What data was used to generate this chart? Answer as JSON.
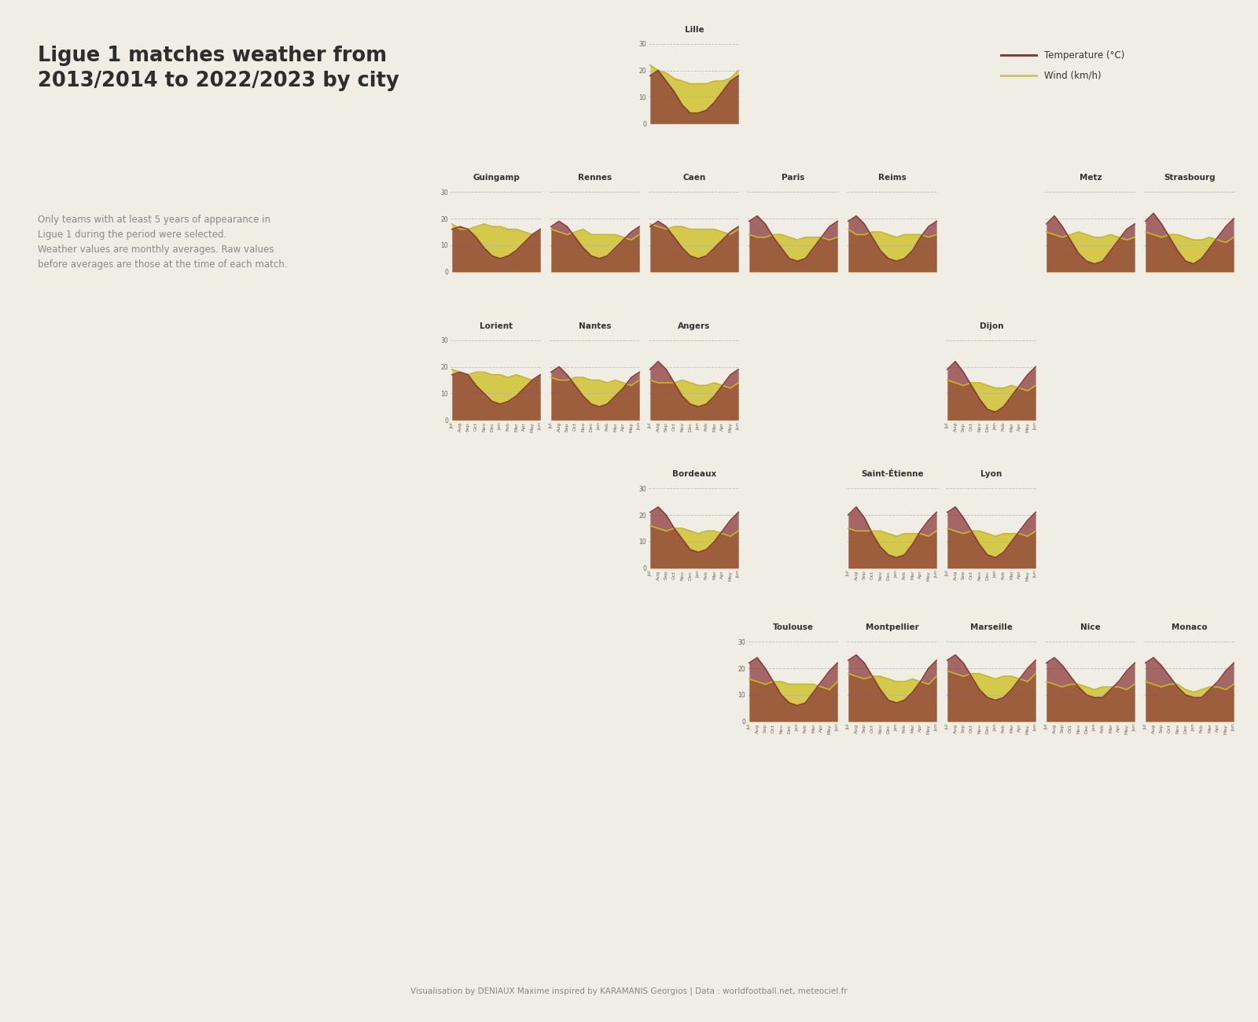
{
  "title": "Ligue 1 matches weather from\n2013/2014 to 2022/2023 by city",
  "subtitle": "Only teams with at least 5 years of appearance in\nLigue 1 during the period were selected.\nWeather values are monthly averages. Raw values\nbefore averages are those at the time of each match.",
  "footer": "Visualisation by DENIAUX Maxime inspired by KARAMANIS Georgios | Data : worldfootball.net, meteociel.fr",
  "bg_color": "#f0ede4",
  "temp_color": "#8B3A3A",
  "wind_color": "#d4c94a",
  "months": [
    "Jul",
    "Aug",
    "Sep",
    "Oct",
    "Nov",
    "Dec",
    "Jan",
    "Feb",
    "Mar",
    "Apr",
    "May",
    "Jun"
  ],
  "cities": {
    "Lille": {
      "temp": [
        18,
        20,
        16,
        12,
        7,
        4,
        4,
        5,
        8,
        12,
        16,
        18
      ],
      "wind": [
        22,
        20,
        19,
        17,
        16,
        15,
        15,
        15,
        16,
        16,
        17,
        20
      ]
    },
    "Guingamp": {
      "temp": [
        16,
        17,
        16,
        13,
        9,
        6,
        5,
        6,
        8,
        11,
        14,
        16
      ],
      "wind": [
        18,
        16,
        16,
        17,
        18,
        17,
        17,
        16,
        16,
        15,
        14,
        16
      ]
    },
    "Rennes": {
      "temp": [
        17,
        19,
        17,
        13,
        9,
        6,
        5,
        6,
        9,
        12,
        15,
        17
      ],
      "wind": [
        16,
        15,
        14,
        15,
        16,
        14,
        14,
        14,
        14,
        13,
        12,
        14
      ]
    },
    "Caen": {
      "temp": [
        17,
        19,
        17,
        13,
        9,
        6,
        5,
        6,
        9,
        12,
        15,
        17
      ],
      "wind": [
        18,
        17,
        16,
        17,
        17,
        16,
        16,
        16,
        16,
        15,
        14,
        16
      ]
    },
    "Paris": {
      "temp": [
        19,
        21,
        18,
        13,
        9,
        5,
        4,
        5,
        9,
        13,
        17,
        19
      ],
      "wind": [
        14,
        13,
        13,
        14,
        14,
        13,
        12,
        13,
        13,
        13,
        12,
        13
      ]
    },
    "Reims": {
      "temp": [
        19,
        21,
        18,
        13,
        8,
        5,
        4,
        5,
        8,
        13,
        17,
        19
      ],
      "wind": [
        16,
        14,
        14,
        15,
        15,
        14,
        13,
        14,
        14,
        14,
        13,
        14
      ]
    },
    "Metz": {
      "temp": [
        18,
        21,
        17,
        12,
        7,
        4,
        3,
        4,
        8,
        12,
        16,
        18
      ],
      "wind": [
        15,
        14,
        13,
        14,
        15,
        14,
        13,
        13,
        14,
        13,
        12,
        13
      ]
    },
    "Strasbourg": {
      "temp": [
        19,
        22,
        18,
        13,
        8,
        4,
        3,
        5,
        9,
        13,
        17,
        20
      ],
      "wind": [
        15,
        14,
        13,
        14,
        14,
        13,
        12,
        12,
        13,
        12,
        11,
        13
      ]
    },
    "Lorient": {
      "temp": [
        17,
        18,
        17,
        13,
        10,
        7,
        6,
        7,
        9,
        12,
        15,
        17
      ],
      "wind": [
        19,
        18,
        17,
        18,
        18,
        17,
        17,
        16,
        17,
        16,
        15,
        17
      ]
    },
    "Nantes": {
      "temp": [
        18,
        20,
        17,
        13,
        9,
        6,
        5,
        6,
        9,
        12,
        16,
        18
      ],
      "wind": [
        16,
        15,
        15,
        16,
        16,
        15,
        15,
        14,
        15,
        14,
        13,
        15
      ]
    },
    "Angers": {
      "temp": [
        19,
        22,
        19,
        14,
        9,
        6,
        5,
        6,
        9,
        13,
        17,
        19
      ],
      "wind": [
        15,
        14,
        14,
        14,
        15,
        14,
        13,
        13,
        14,
        13,
        12,
        14
      ]
    },
    "Dijon": {
      "temp": [
        19,
        22,
        18,
        13,
        8,
        4,
        3,
        5,
        9,
        13,
        17,
        20
      ],
      "wind": [
        15,
        14,
        13,
        14,
        14,
        13,
        12,
        12,
        13,
        12,
        11,
        13
      ]
    },
    "Bordeaux": {
      "temp": [
        21,
        23,
        20,
        15,
        11,
        7,
        6,
        7,
        10,
        14,
        18,
        21
      ],
      "wind": [
        16,
        15,
        14,
        15,
        15,
        14,
        13,
        14,
        14,
        13,
        12,
        14
      ]
    },
    "Saint-Étienne": {
      "temp": [
        20,
        23,
        19,
        13,
        8,
        5,
        4,
        5,
        9,
        14,
        18,
        21
      ],
      "wind": [
        15,
        14,
        14,
        14,
        14,
        13,
        12,
        13,
        13,
        13,
        12,
        14
      ]
    },
    "Lyon": {
      "temp": [
        21,
        23,
        19,
        14,
        9,
        5,
        4,
        6,
        10,
        14,
        18,
        21
      ],
      "wind": [
        15,
        14,
        13,
        14,
        14,
        13,
        12,
        13,
        13,
        13,
        12,
        14
      ]
    },
    "Toulouse": {
      "temp": [
        22,
        24,
        20,
        15,
        10,
        7,
        6,
        7,
        11,
        15,
        19,
        22
      ],
      "wind": [
        16,
        15,
        14,
        15,
        15,
        14,
        14,
        14,
        14,
        13,
        12,
        15
      ]
    },
    "Montpellier": {
      "temp": [
        23,
        25,
        22,
        17,
        12,
        8,
        7,
        8,
        11,
        15,
        20,
        23
      ],
      "wind": [
        18,
        17,
        16,
        17,
        17,
        16,
        15,
        15,
        16,
        15,
        14,
        17
      ]
    },
    "Marseille": {
      "temp": [
        23,
        25,
        22,
        17,
        12,
        9,
        8,
        9,
        12,
        16,
        20,
        23
      ],
      "wind": [
        19,
        18,
        17,
        18,
        18,
        17,
        16,
        17,
        17,
        16,
        15,
        18
      ]
    },
    "Nice": {
      "temp": [
        22,
        24,
        21,
        17,
        13,
        10,
        9,
        9,
        12,
        15,
        19,
        22
      ],
      "wind": [
        15,
        14,
        13,
        14,
        14,
        13,
        12,
        13,
        13,
        13,
        12,
        14
      ]
    },
    "Monaco": {
      "temp": [
        22,
        24,
        21,
        17,
        13,
        10,
        9,
        9,
        12,
        15,
        19,
        22
      ],
      "wind": [
        15,
        14,
        13,
        14,
        14,
        12,
        11,
        12,
        13,
        13,
        12,
        14
      ]
    }
  }
}
